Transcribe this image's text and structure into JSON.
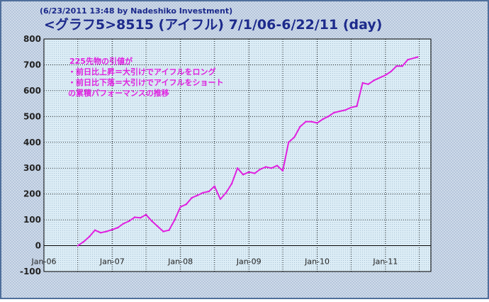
{
  "header": {
    "timestamp": "(6/23/2011 13:48 by Nadeshiko Investment)"
  },
  "chart_data": {
    "type": "line",
    "title": "<グラフ5>8515 (アイフル) 7/1/06-6/22/11 (day)",
    "annotation": [
      "225先物の引値が",
      "・前日比上昇＝大引けでアイフルをロング",
      "・前日比下落＝大引けでアイフルをショート",
      "の累積パフォーマンスの推移"
    ],
    "xlabel": "",
    "ylabel": "",
    "x_ticks": [
      "Jan-06",
      "Jan-07",
      "Jan-08",
      "Jan-09",
      "Jan-10",
      "Jan-11"
    ],
    "y_ticks": [
      -100,
      0,
      100,
      200,
      300,
      400,
      500,
      600,
      700,
      800
    ],
    "xlim": [
      "2006-01-01",
      "2011-09-01"
    ],
    "ylim": [
      -100,
      800
    ],
    "grid": true,
    "legend": "none",
    "colors": {
      "line": "#e020e0",
      "annotation": "#e020e0",
      "plot_bg": "#d9ecf5",
      "frame_bg": "#c9d5e6",
      "title": "#1d2a8c",
      "timestamp": "#1d2a8c"
    },
    "series": [
      {
        "x": [
          "2006-07-01",
          "2006-08-01",
          "2006-09-01",
          "2006-10-01",
          "2006-11-01",
          "2006-12-01",
          "2007-01-01",
          "2007-02-01",
          "2007-03-01",
          "2007-04-01",
          "2007-05-01",
          "2007-06-01",
          "2007-07-01",
          "2007-08-01",
          "2007-09-01",
          "2007-10-01",
          "2007-11-01",
          "2007-12-01",
          "2008-01-01",
          "2008-02-01",
          "2008-03-01",
          "2008-04-01",
          "2008-05-01",
          "2008-06-01",
          "2008-07-01",
          "2008-08-01",
          "2008-09-01",
          "2008-10-01",
          "2008-11-01",
          "2008-12-01",
          "2009-01-01",
          "2009-02-01",
          "2009-03-01",
          "2009-04-01",
          "2009-05-01",
          "2009-06-01",
          "2009-07-01",
          "2009-08-01",
          "2009-09-01",
          "2009-10-01",
          "2009-11-01",
          "2009-12-01",
          "2010-01-01",
          "2010-02-01",
          "2010-03-01",
          "2010-04-01",
          "2010-05-01",
          "2010-06-01",
          "2010-07-01",
          "2010-08-01",
          "2010-09-01",
          "2010-10-01",
          "2010-11-01",
          "2010-12-01",
          "2011-01-01",
          "2011-02-01",
          "2011-03-01",
          "2011-04-01",
          "2011-05-01",
          "2011-06-22"
        ],
        "y": [
          0,
          15,
          35,
          60,
          50,
          55,
          62,
          70,
          85,
          95,
          110,
          108,
          120,
          95,
          75,
          55,
          60,
          100,
          150,
          160,
          185,
          195,
          205,
          210,
          230,
          180,
          205,
          240,
          300,
          275,
          285,
          280,
          295,
          305,
          300,
          310,
          290,
          400,
          420,
          460,
          480,
          480,
          475,
          490,
          500,
          515,
          520,
          525,
          535,
          540,
          630,
          625,
          640,
          650,
          660,
          675,
          695,
          695,
          720,
          730
        ]
      }
    ]
  }
}
